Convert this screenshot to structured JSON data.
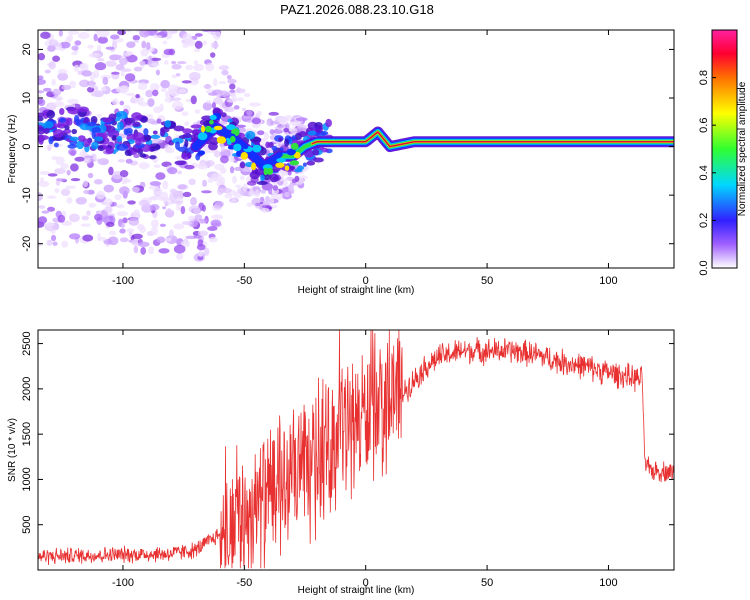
{
  "title": "PAZ1.2026.088.23.10.G18",
  "colors": {
    "snr_line": "#e83030",
    "dominant_freq": "#d8003c",
    "scatter_violet": "#8a2be2"
  },
  "chart_data": [
    {
      "type": "heatmap",
      "name": "spectrogram",
      "xlabel": "Height of straight line (km)",
      "ylabel": "Frequency (Hz)",
      "xlim": [
        -135,
        127
      ],
      "ylim": [
        -25,
        24
      ],
      "x_ticks": [
        -100,
        -50,
        0,
        50,
        100
      ],
      "y_ticks": [
        -20,
        -10,
        0,
        10,
        20
      ],
      "colorbar": {
        "label": "Normalized spectral amplitude",
        "range": [
          0.0,
          1.0
        ],
        "ticks": [
          "0.0",
          "0.2",
          "0.4",
          "0.6",
          "0.8"
        ]
      },
      "dominant_track": {
        "x": [
          -135,
          -120,
          -105,
          -90,
          -80,
          -70,
          -62,
          -55,
          -48,
          -42,
          -35,
          -30,
          -25,
          -20,
          -10,
          0,
          5,
          10,
          20,
          40,
          60,
          80,
          100,
          127
        ],
        "y": [
          3,
          4,
          3,
          2,
          1,
          0,
          4,
          2,
          -1,
          -4,
          -2,
          -2,
          0,
          1,
          1,
          1,
          3,
          0,
          1,
          1,
          1,
          1,
          1,
          1
        ]
      }
    },
    {
      "type": "line",
      "name": "snr",
      "xlabel": "Height of straight line (km)",
      "ylabel": "SNR (10 * v/v)",
      "xlim": [
        -135,
        127
      ],
      "ylim": [
        0,
        2650
      ],
      "x_ticks": [
        -100,
        -50,
        0,
        50,
        100
      ],
      "y_ticks": [
        500,
        1000,
        1500,
        2000,
        2500
      ],
      "envelope": {
        "x": [
          -135,
          -100,
          -80,
          -70,
          -60,
          -50,
          -40,
          -30,
          -20,
          -15,
          -10,
          -5,
          0,
          5,
          10,
          15,
          20,
          25,
          30,
          40,
          50,
          60,
          70,
          80,
          90,
          100,
          105,
          110,
          114,
          115,
          118,
          127
        ],
        "y": [
          150,
          170,
          180,
          220,
          400,
          600,
          800,
          1000,
          1150,
          1350,
          1550,
          1650,
          1700,
          1800,
          1900,
          1950,
          2100,
          2250,
          2350,
          2420,
          2420,
          2420,
          2380,
          2300,
          2250,
          2180,
          2150,
          2120,
          2100,
          1150,
          1100,
          1080
        ]
      }
    }
  ]
}
